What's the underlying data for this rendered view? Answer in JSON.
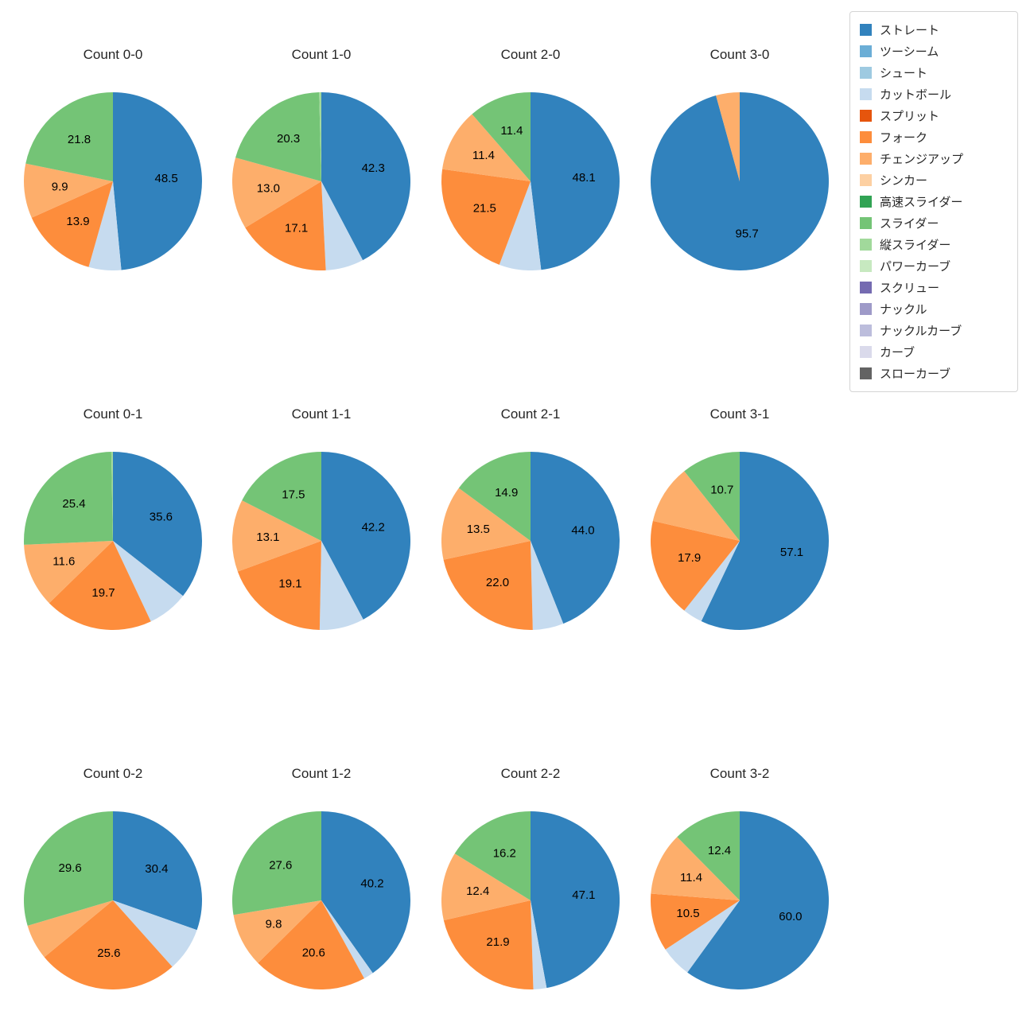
{
  "legend": {
    "items": [
      {
        "label": "ストレート",
        "color": "#3182bd"
      },
      {
        "label": "ツーシーム",
        "color": "#6baed6"
      },
      {
        "label": "シュート",
        "color": "#9ecae1"
      },
      {
        "label": "カットボール",
        "color": "#c6dbef"
      },
      {
        "label": "スプリット",
        "color": "#e6550d"
      },
      {
        "label": "フォーク",
        "color": "#fd8d3c"
      },
      {
        "label": "チェンジアップ",
        "color": "#fdae6b"
      },
      {
        "label": "シンカー",
        "color": "#fdd0a2"
      },
      {
        "label": "高速スライダー",
        "color": "#31a354"
      },
      {
        "label": "スライダー",
        "color": "#74c476"
      },
      {
        "label": "縦スライダー",
        "color": "#a1d99b"
      },
      {
        "label": "パワーカーブ",
        "color": "#c7e9c0"
      },
      {
        "label": "スクリュー",
        "color": "#756bb1"
      },
      {
        "label": "ナックル",
        "color": "#9e9ac8"
      },
      {
        "label": "ナックルカーブ",
        "color": "#bcbddc"
      },
      {
        "label": "カーブ",
        "color": "#dadaeb"
      },
      {
        "label": "スローカーブ",
        "color": "#636363"
      }
    ]
  },
  "chart_data": [
    {
      "type": "pie",
      "title": "Count 0-0",
      "slices": [
        {
          "name": "ストレート",
          "value": 48.5,
          "label": "48.5"
        },
        {
          "name": "カットボール",
          "value": 5.9,
          "label": ""
        },
        {
          "name": "フォーク",
          "value": 13.9,
          "label": "13.9"
        },
        {
          "name": "チェンジアップ",
          "value": 9.9,
          "label": "9.9"
        },
        {
          "name": "スライダー",
          "value": 21.8,
          "label": "21.8"
        }
      ]
    },
    {
      "type": "pie",
      "title": "Count 1-0",
      "slices": [
        {
          "name": "ストレート",
          "value": 42.3,
          "label": "42.3"
        },
        {
          "name": "カットボール",
          "value": 6.9,
          "label": ""
        },
        {
          "name": "フォーク",
          "value": 17.1,
          "label": "17.1"
        },
        {
          "name": "チェンジアップ",
          "value": 13.0,
          "label": "13.0"
        },
        {
          "name": "スライダー",
          "value": 20.3,
          "label": "20.3"
        },
        {
          "name": "縦スライダー",
          "value": 0.4,
          "label": ""
        }
      ]
    },
    {
      "type": "pie",
      "title": "Count 2-0",
      "slices": [
        {
          "name": "ストレート",
          "value": 48.1,
          "label": "48.1"
        },
        {
          "name": "カットボール",
          "value": 7.6,
          "label": ""
        },
        {
          "name": "フォーク",
          "value": 21.5,
          "label": "21.5"
        },
        {
          "name": "チェンジアップ",
          "value": 11.4,
          "label": "11.4"
        },
        {
          "name": "スライダー",
          "value": 11.4,
          "label": "11.4"
        }
      ]
    },
    {
      "type": "pie",
      "title": "Count 3-0",
      "slices": [
        {
          "name": "ストレート",
          "value": 95.7,
          "label": "95.7"
        },
        {
          "name": "チェンジアップ",
          "value": 4.3,
          "label": ""
        }
      ]
    },
    {
      "type": "pie",
      "title": "Count 0-1",
      "slices": [
        {
          "name": "ストレート",
          "value": 35.6,
          "label": "35.6"
        },
        {
          "name": "カットボール",
          "value": 7.4,
          "label": ""
        },
        {
          "name": "フォーク",
          "value": 19.7,
          "label": "19.7"
        },
        {
          "name": "チェンジアップ",
          "value": 11.6,
          "label": "11.6"
        },
        {
          "name": "スライダー",
          "value": 25.4,
          "label": "25.4"
        },
        {
          "name": "縦スライダー",
          "value": 0.3,
          "label": ""
        }
      ]
    },
    {
      "type": "pie",
      "title": "Count 1-1",
      "slices": [
        {
          "name": "ストレート",
          "value": 42.2,
          "label": "42.2"
        },
        {
          "name": "カットボール",
          "value": 8.1,
          "label": ""
        },
        {
          "name": "フォーク",
          "value": 19.1,
          "label": "19.1"
        },
        {
          "name": "チェンジアップ",
          "value": 13.1,
          "label": "13.1"
        },
        {
          "name": "スライダー",
          "value": 17.5,
          "label": "17.5"
        }
      ]
    },
    {
      "type": "pie",
      "title": "Count 2-1",
      "slices": [
        {
          "name": "ストレート",
          "value": 44.0,
          "label": "44.0"
        },
        {
          "name": "カットボール",
          "value": 5.6,
          "label": ""
        },
        {
          "name": "フォーク",
          "value": 22.0,
          "label": "22.0"
        },
        {
          "name": "チェンジアップ",
          "value": 13.5,
          "label": "13.5"
        },
        {
          "name": "スライダー",
          "value": 14.9,
          "label": "14.9"
        }
      ]
    },
    {
      "type": "pie",
      "title": "Count 3-1",
      "slices": [
        {
          "name": "ストレート",
          "value": 57.1,
          "label": "57.1"
        },
        {
          "name": "カットボール",
          "value": 3.6,
          "label": ""
        },
        {
          "name": "フォーク",
          "value": 17.9,
          "label": "17.9"
        },
        {
          "name": "チェンジアップ",
          "value": 10.7,
          "label": ""
        },
        {
          "name": "スライダー",
          "value": 10.7,
          "label": "10.7"
        }
      ]
    },
    {
      "type": "pie",
      "title": "Count 0-2",
      "slices": [
        {
          "name": "ストレート",
          "value": 30.4,
          "label": "30.4"
        },
        {
          "name": "カットボール",
          "value": 8.0,
          "label": ""
        },
        {
          "name": "フォーク",
          "value": 25.6,
          "label": "25.6"
        },
        {
          "name": "チェンジアップ",
          "value": 6.4,
          "label": ""
        },
        {
          "name": "スライダー",
          "value": 29.6,
          "label": "29.6"
        }
      ]
    },
    {
      "type": "pie",
      "title": "Count 1-2",
      "slices": [
        {
          "name": "ストレート",
          "value": 40.2,
          "label": "40.2"
        },
        {
          "name": "カットボール",
          "value": 1.8,
          "label": ""
        },
        {
          "name": "フォーク",
          "value": 20.6,
          "label": "20.6"
        },
        {
          "name": "チェンジアップ",
          "value": 9.8,
          "label": "9.8"
        },
        {
          "name": "スライダー",
          "value": 27.6,
          "label": "27.6"
        }
      ]
    },
    {
      "type": "pie",
      "title": "Count 2-2",
      "slices": [
        {
          "name": "ストレート",
          "value": 47.1,
          "label": "47.1"
        },
        {
          "name": "カットボール",
          "value": 2.4,
          "label": ""
        },
        {
          "name": "フォーク",
          "value": 21.9,
          "label": "21.9"
        },
        {
          "name": "チェンジアップ",
          "value": 12.4,
          "label": "12.4"
        },
        {
          "name": "スライダー",
          "value": 16.2,
          "label": "16.2"
        }
      ]
    },
    {
      "type": "pie",
      "title": "Count 3-2",
      "slices": [
        {
          "name": "ストレート",
          "value": 60.0,
          "label": "60.0"
        },
        {
          "name": "カットボール",
          "value": 5.7,
          "label": ""
        },
        {
          "name": "フォーク",
          "value": 10.5,
          "label": "10.5"
        },
        {
          "name": "チェンジアップ",
          "value": 11.4,
          "label": "11.4"
        },
        {
          "name": "スライダー",
          "value": 12.4,
          "label": "12.4"
        }
      ]
    }
  ]
}
